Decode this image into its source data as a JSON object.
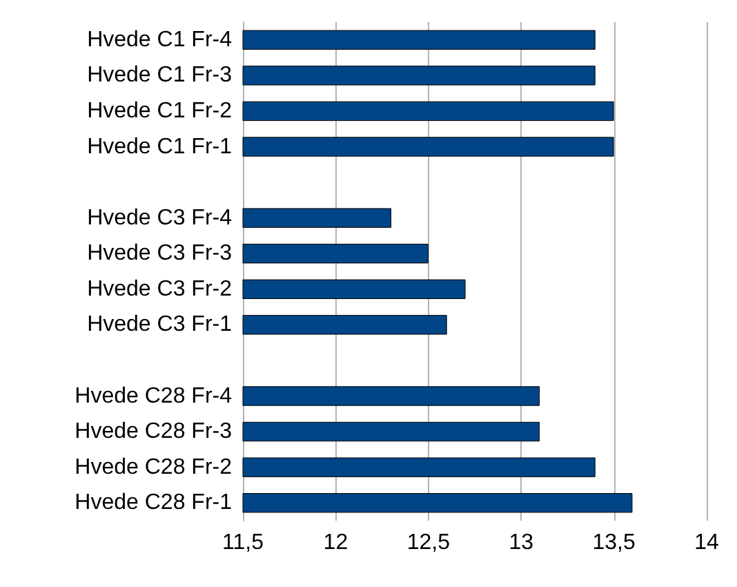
{
  "chart_data": {
    "type": "bar",
    "orientation": "horizontal",
    "categories": [
      "Hvede C1 Fr-4",
      "Hvede C1 Fr-3",
      "Hvede C1 Fr-2",
      "Hvede C1 Fr-1",
      null,
      "Hvede C3 Fr-4",
      "Hvede C3 Fr-3",
      "Hvede C3 Fr-2",
      "Hvede C3 Fr-1",
      null,
      "Hvede C28 Fr-4",
      "Hvede C28 Fr-3",
      "Hvede C28 Fr-2",
      "Hvede C28 Fr-1"
    ],
    "series": [
      {
        "color": "#004586",
        "values": [
          13.4,
          13.4,
          13.5,
          13.5,
          null,
          12.3,
          12.5,
          12.7,
          12.6,
          null,
          13.1,
          13.1,
          13.4,
          13.6
        ]
      }
    ],
    "xlim": [
      11.5,
      14
    ],
    "xticks": [
      {
        "value": 11.5,
        "label": "11,5"
      },
      12,
      {
        "value": 12.5,
        "label": "12,5"
      },
      13,
      {
        "value": 13.5,
        "label": "13,5"
      },
      14
    ],
    "grid": "x"
  }
}
